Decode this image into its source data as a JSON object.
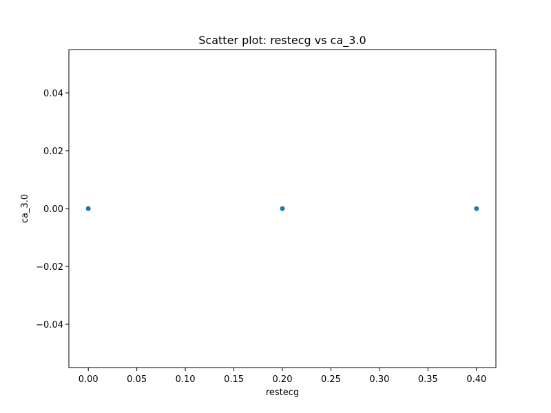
{
  "chart_data": {
    "type": "scatter",
    "title": "Scatter plot: restecg vs ca_3.0",
    "xlabel": "restecg",
    "ylabel": "ca_3.0",
    "xlim": [
      -0.02,
      0.42
    ],
    "ylim": [
      -0.055,
      0.055
    ],
    "x_ticks": [
      0.0,
      0.05,
      0.1,
      0.15,
      0.2,
      0.25,
      0.3,
      0.35,
      0.4
    ],
    "x_tick_labels": [
      "0.00",
      "0.05",
      "0.10",
      "0.15",
      "0.20",
      "0.25",
      "0.30",
      "0.35",
      "0.40"
    ],
    "y_ticks": [
      -0.04,
      -0.02,
      0.0,
      0.02,
      0.04
    ],
    "y_tick_labels": [
      "−0.04",
      "−0.02",
      "0.00",
      "0.02",
      "0.04"
    ],
    "grid": false,
    "marker_color": "#1f77b4",
    "series": [
      {
        "x": [
          0.0,
          0.2,
          0.4
        ],
        "y": [
          0.0,
          0.0,
          0.0
        ]
      }
    ]
  }
}
